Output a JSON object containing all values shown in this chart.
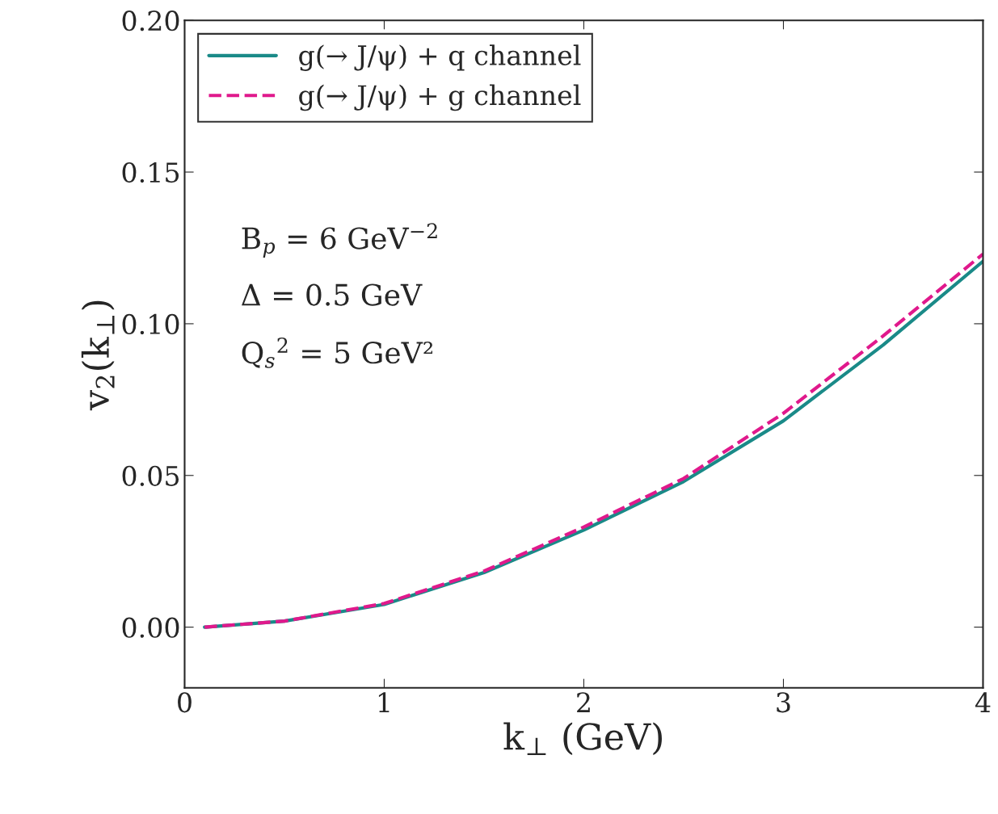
{
  "chart_data": {
    "type": "line",
    "xlabel": "k$_{⊥}$ (GeV)",
    "ylabel": "v$_{2}$(k$_{⊥}$)",
    "xlim": [
      0,
      4
    ],
    "ylim": [
      -0.02,
      0.2
    ],
    "xticks": [
      0,
      1,
      2,
      3,
      4
    ],
    "yticks": [
      {
        "value": 0,
        "label": "0.00"
      },
      {
        "value": 0.05,
        "label": "0.05"
      },
      {
        "value": 0.1,
        "label": "0.10"
      },
      {
        "value": 0.15,
        "label": "0.15"
      },
      {
        "value": 0.2,
        "label": "0.20"
      }
    ],
    "x": [
      0.1,
      0.5,
      1,
      1.5,
      2,
      2.5,
      3,
      3.5,
      4
    ],
    "series": [
      {
        "name": "g(→ J/ψ) + q channel",
        "color": "#1a8a88",
        "line_style": "solid",
        "values": [
          0,
          0.002,
          0.0075,
          0.018,
          0.032,
          0.048,
          0.068,
          0.093,
          0.1206
        ]
      },
      {
        "name": "g(→ J/ψ) + g channel",
        "color": "#e0198c",
        "line_style": "dashed",
        "values": [
          0,
          0.002,
          0.0078,
          0.0185,
          0.033,
          0.049,
          0.0705,
          0.096,
          0.123
        ]
      }
    ],
    "annotations": [
      "B$_{p}$ = 6 GeV$^{−2}$",
      "Δ = 0.5 GeV",
      "Q$_{s}$$^{2}$ = 5 GeV²"
    ],
    "legend": "top left",
    "grid": false
  }
}
